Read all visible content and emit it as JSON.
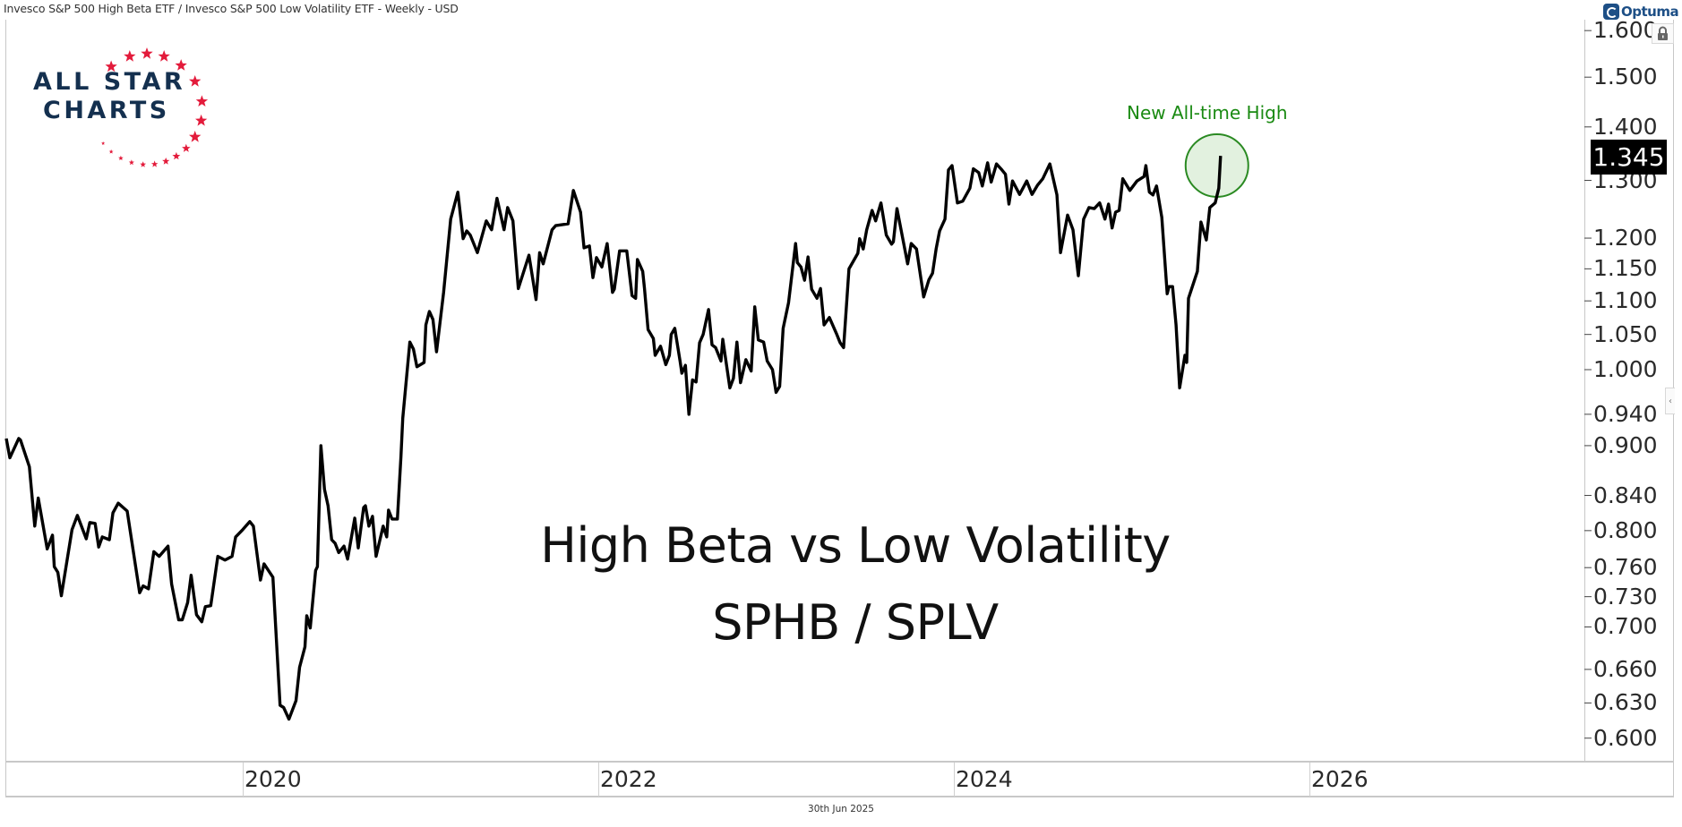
{
  "header": {
    "title": "Invesco S&P 500 High Beta ETF / Invesco S&P 500 Low Volatility ETF - Weekly - USD"
  },
  "branding": {
    "platform": "Optuma",
    "logo_lines": [
      "ALL STAR",
      "CHARTS"
    ],
    "logo_text_color": "#14304f",
    "logo_star_color": "#e31b3b"
  },
  "footer": {
    "date": "30th Jun 2025"
  },
  "controls": {
    "lock_icon": "lock-icon",
    "collapse_icon": "chevron-left-icon",
    "collapse_glyph": "‹"
  },
  "chart_data": {
    "type": "line",
    "title": "High Beta vs Low Volatility",
    "subtitle": "SPHB / SPLV",
    "xlabel": "",
    "ylabel": "",
    "y_scale": "log",
    "ylim": [
      0.58,
      1.62
    ],
    "xlim": [
      2018.65,
      2026.95
    ],
    "grid": false,
    "line_color": "#000000",
    "last_value": "1.345",
    "annotation": {
      "text": "New All-time High",
      "color": "#1a8a12",
      "fill": "#e2f1df",
      "stroke": "#2a8a22",
      "at": [
        2025.49,
        1.327
      ]
    },
    "y_ticks": [
      "1.600",
      "1.500",
      "1.400",
      "1.300",
      "1.200",
      "1.150",
      "1.100",
      "1.050",
      "1.000",
      "0.940",
      "0.900",
      "0.840",
      "0.800",
      "0.760",
      "0.730",
      "0.700",
      "0.660",
      "0.630",
      "0.600"
    ],
    "x_ticks": [
      "2020",
      "2022",
      "2024",
      "2026"
    ],
    "series": [
      {
        "name": "SPHB / SPLV",
        "points": [
          [
            2018.67,
            0.909
          ],
          [
            2018.69,
            0.885
          ],
          [
            2018.74,
            0.909
          ],
          [
            2018.75,
            0.907
          ],
          [
            2018.8,
            0.874
          ],
          [
            2018.83,
            0.805
          ],
          [
            2018.85,
            0.837
          ],
          [
            2018.9,
            0.78
          ],
          [
            2018.93,
            0.795
          ],
          [
            2018.94,
            0.761
          ],
          [
            2018.96,
            0.755
          ],
          [
            2018.98,
            0.731
          ],
          [
            2019.04,
            0.801
          ],
          [
            2019.07,
            0.817
          ],
          [
            2019.12,
            0.791
          ],
          [
            2019.14,
            0.809
          ],
          [
            2019.17,
            0.808
          ],
          [
            2019.19,
            0.782
          ],
          [
            2019.21,
            0.793
          ],
          [
            2019.25,
            0.79
          ],
          [
            2019.27,
            0.82
          ],
          [
            2019.3,
            0.831
          ],
          [
            2019.35,
            0.822
          ],
          [
            2019.42,
            0.734
          ],
          [
            2019.44,
            0.741
          ],
          [
            2019.47,
            0.738
          ],
          [
            2019.5,
            0.777
          ],
          [
            2019.53,
            0.772
          ],
          [
            2019.58,
            0.783
          ],
          [
            2019.6,
            0.743
          ],
          [
            2019.64,
            0.707
          ],
          [
            2019.66,
            0.707
          ],
          [
            2019.69,
            0.724
          ],
          [
            2019.71,
            0.752
          ],
          [
            2019.74,
            0.712
          ],
          [
            2019.77,
            0.705
          ],
          [
            2019.79,
            0.72
          ],
          [
            2019.82,
            0.721
          ],
          [
            2019.86,
            0.772
          ],
          [
            2019.9,
            0.768
          ],
          [
            2019.94,
            0.772
          ],
          [
            2019.96,
            0.793
          ],
          [
            2020.0,
            0.801
          ],
          [
            2020.04,
            0.81
          ],
          [
            2020.06,
            0.805
          ],
          [
            2020.1,
            0.747
          ],
          [
            2020.12,
            0.764
          ],
          [
            2020.17,
            0.75
          ],
          [
            2020.21,
            0.628
          ],
          [
            2020.23,
            0.626
          ],
          [
            2020.26,
            0.616
          ],
          [
            2020.3,
            0.632
          ],
          [
            2020.32,
            0.662
          ],
          [
            2020.35,
            0.681
          ],
          [
            2020.36,
            0.711
          ],
          [
            2020.38,
            0.699
          ],
          [
            2020.41,
            0.757
          ],
          [
            2020.42,
            0.761
          ],
          [
            2020.44,
            0.9
          ],
          [
            2020.46,
            0.847
          ],
          [
            2020.48,
            0.828
          ],
          [
            2020.5,
            0.79
          ],
          [
            2020.52,
            0.786
          ],
          [
            2020.54,
            0.776
          ],
          [
            2020.57,
            0.783
          ],
          [
            2020.59,
            0.769
          ],
          [
            2020.63,
            0.814
          ],
          [
            2020.65,
            0.781
          ],
          [
            2020.68,
            0.826
          ],
          [
            2020.69,
            0.828
          ],
          [
            2020.71,
            0.805
          ],
          [
            2020.73,
            0.816
          ],
          [
            2020.75,
            0.772
          ],
          [
            2020.79,
            0.805
          ],
          [
            2020.81,
            0.793
          ],
          [
            2020.82,
            0.823
          ],
          [
            2020.84,
            0.813
          ],
          [
            2020.87,
            0.813
          ],
          [
            2020.89,
            0.887
          ],
          [
            2020.9,
            0.935
          ],
          [
            2020.94,
            1.039
          ],
          [
            2020.96,
            1.029
          ],
          [
            2020.98,
            1.004
          ],
          [
            2021.02,
            1.01
          ],
          [
            2021.03,
            1.064
          ],
          [
            2021.05,
            1.084
          ],
          [
            2021.07,
            1.072
          ],
          [
            2021.09,
            1.025
          ],
          [
            2021.13,
            1.113
          ],
          [
            2021.17,
            1.232
          ],
          [
            2021.21,
            1.279
          ],
          [
            2021.24,
            1.199
          ],
          [
            2021.26,
            1.212
          ],
          [
            2021.28,
            1.205
          ],
          [
            2021.32,
            1.176
          ],
          [
            2021.37,
            1.229
          ],
          [
            2021.4,
            1.214
          ],
          [
            2021.43,
            1.268
          ],
          [
            2021.47,
            1.214
          ],
          [
            2021.49,
            1.252
          ],
          [
            2021.52,
            1.229
          ],
          [
            2021.55,
            1.119
          ],
          [
            2021.61,
            1.172
          ],
          [
            2021.65,
            1.102
          ],
          [
            2021.67,
            1.176
          ],
          [
            2021.69,
            1.158
          ],
          [
            2021.74,
            1.214
          ],
          [
            2021.76,
            1.221
          ],
          [
            2021.83,
            1.224
          ],
          [
            2021.86,
            1.282
          ],
          [
            2021.9,
            1.244
          ],
          [
            2021.92,
            1.184
          ],
          [
            2021.95,
            1.187
          ],
          [
            2021.97,
            1.136
          ],
          [
            2021.99,
            1.168
          ],
          [
            2022.02,
            1.153
          ],
          [
            2022.05,
            1.191
          ],
          [
            2022.08,
            1.113
          ],
          [
            2022.09,
            1.118
          ],
          [
            2022.12,
            1.179
          ],
          [
            2022.16,
            1.179
          ],
          [
            2022.19,
            1.108
          ],
          [
            2022.21,
            1.104
          ],
          [
            2022.22,
            1.165
          ],
          [
            2022.25,
            1.146
          ],
          [
            2022.26,
            1.119
          ],
          [
            2022.28,
            1.057
          ],
          [
            2022.31,
            1.044
          ],
          [
            2022.32,
            1.02
          ],
          [
            2022.35,
            1.033
          ],
          [
            2022.38,
            1.007
          ],
          [
            2022.4,
            1.02
          ],
          [
            2022.41,
            1.05
          ],
          [
            2022.43,
            1.059
          ],
          [
            2022.46,
            1.012
          ],
          [
            2022.47,
            0.995
          ],
          [
            2022.49,
            1.006
          ],
          [
            2022.51,
            0.94
          ],
          [
            2022.53,
            0.986
          ],
          [
            2022.55,
            0.983
          ],
          [
            2022.57,
            1.038
          ],
          [
            2022.59,
            1.05
          ],
          [
            2022.62,
            1.087
          ],
          [
            2022.64,
            1.035
          ],
          [
            2022.66,
            1.031
          ],
          [
            2022.69,
            1.012
          ],
          [
            2022.7,
            1.043
          ],
          [
            2022.74,
            0.975
          ],
          [
            2022.76,
            0.988
          ],
          [
            2022.78,
            1.039
          ],
          [
            2022.8,
            0.982
          ],
          [
            2022.83,
            1.014
          ],
          [
            2022.86,
            0.998
          ],
          [
            2022.88,
            1.091
          ],
          [
            2022.9,
            1.042
          ],
          [
            2022.93,
            1.039
          ],
          [
            2022.95,
            1.012
          ],
          [
            2022.98,
            1.0
          ],
          [
            2023.0,
            0.969
          ],
          [
            2023.02,
            0.977
          ],
          [
            2023.04,
            1.059
          ],
          [
            2023.07,
            1.097
          ],
          [
            2023.11,
            1.191
          ],
          [
            2023.12,
            1.16
          ],
          [
            2023.14,
            1.153
          ],
          [
            2023.16,
            1.132
          ],
          [
            2023.18,
            1.169
          ],
          [
            2023.2,
            1.118
          ],
          [
            2023.23,
            1.104
          ],
          [
            2023.25,
            1.119
          ],
          [
            2023.27,
            1.064
          ],
          [
            2023.3,
            1.075
          ],
          [
            2023.34,
            1.051
          ],
          [
            2023.36,
            1.038
          ],
          [
            2023.38,
            1.031
          ],
          [
            2023.41,
            1.15
          ],
          [
            2023.43,
            1.16
          ],
          [
            2023.46,
            1.175
          ],
          [
            2023.47,
            1.199
          ],
          [
            2023.49,
            1.182
          ],
          [
            2023.51,
            1.214
          ],
          [
            2023.54,
            1.247
          ],
          [
            2023.56,
            1.229
          ],
          [
            2023.59,
            1.26
          ],
          [
            2023.62,
            1.205
          ],
          [
            2023.65,
            1.19
          ],
          [
            2023.66,
            1.194
          ],
          [
            2023.68,
            1.25
          ],
          [
            2023.74,
            1.158
          ],
          [
            2023.76,
            1.191
          ],
          [
            2023.79,
            1.182
          ],
          [
            2023.83,
            1.106
          ],
          [
            2023.86,
            1.133
          ],
          [
            2023.88,
            1.143
          ],
          [
            2023.9,
            1.182
          ],
          [
            2023.92,
            1.212
          ],
          [
            2023.95,
            1.232
          ],
          [
            2023.97,
            1.319
          ],
          [
            2023.99,
            1.327
          ],
          [
            2024.02,
            1.26
          ],
          [
            2024.05,
            1.263
          ],
          [
            2024.09,
            1.286
          ],
          [
            2024.11,
            1.321
          ],
          [
            2024.14,
            1.314
          ],
          [
            2024.16,
            1.29
          ],
          [
            2024.19,
            1.332
          ],
          [
            2024.21,
            1.297
          ],
          [
            2024.24,
            1.33
          ],
          [
            2024.27,
            1.319
          ],
          [
            2024.29,
            1.311
          ],
          [
            2024.31,
            1.258
          ],
          [
            2024.33,
            1.299
          ],
          [
            2024.37,
            1.275
          ],
          [
            2024.41,
            1.299
          ],
          [
            2024.44,
            1.275
          ],
          [
            2024.47,
            1.291
          ],
          [
            2024.5,
            1.303
          ],
          [
            2024.54,
            1.33
          ],
          [
            2024.58,
            1.274
          ],
          [
            2024.6,
            1.176
          ],
          [
            2024.64,
            1.239
          ],
          [
            2024.67,
            1.214
          ],
          [
            2024.7,
            1.139
          ],
          [
            2024.73,
            1.232
          ],
          [
            2024.76,
            1.252
          ],
          [
            2024.79,
            1.25
          ],
          [
            2024.82,
            1.26
          ],
          [
            2024.85,
            1.232
          ],
          [
            2024.87,
            1.258
          ],
          [
            2024.89,
            1.217
          ],
          [
            2024.91,
            1.244
          ],
          [
            2024.93,
            1.247
          ],
          [
            2024.95,
            1.303
          ],
          [
            2024.99,
            1.282
          ],
          [
            2025.03,
            1.299
          ],
          [
            2025.07,
            1.307
          ],
          [
            2025.08,
            1.327
          ],
          [
            2025.1,
            1.279
          ],
          [
            2025.12,
            1.274
          ],
          [
            2025.14,
            1.29
          ],
          [
            2025.17,
            1.235
          ],
          [
            2025.2,
            1.111
          ],
          [
            2025.21,
            1.122
          ],
          [
            2025.23,
            1.122
          ],
          [
            2025.25,
            1.064
          ],
          [
            2025.27,
            0.975
          ],
          [
            2025.3,
            1.02
          ],
          [
            2025.31,
            1.01
          ],
          [
            2025.32,
            1.104
          ],
          [
            2025.37,
            1.146
          ],
          [
            2025.39,
            1.227
          ],
          [
            2025.42,
            1.197
          ],
          [
            2025.44,
            1.252
          ],
          [
            2025.47,
            1.26
          ],
          [
            2025.49,
            1.286
          ],
          [
            2025.5,
            1.345
          ]
        ]
      }
    ]
  }
}
